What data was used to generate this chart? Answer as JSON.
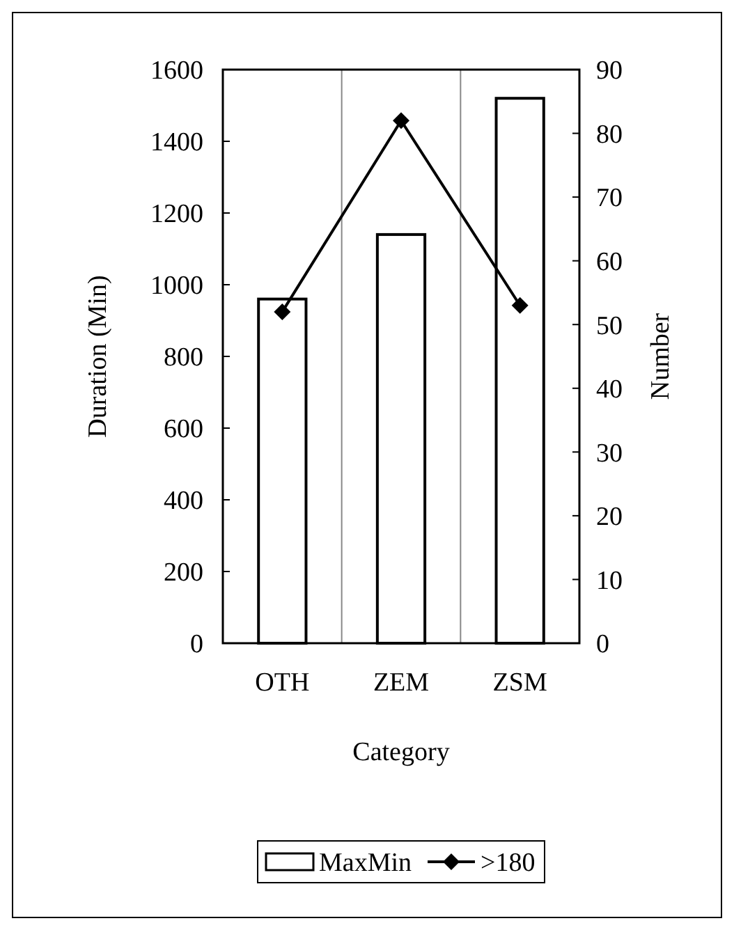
{
  "chart_data": {
    "type": "bar",
    "xlabel": "Category",
    "ylabel": "Duration (Min)",
    "y2label": "Number",
    "categories": [
      "OTH",
      "ZEM",
      "ZSM"
    ],
    "series": [
      {
        "name": "MaxMin",
        "color": "#ffffff",
        "values": [
          960,
          1140,
          1520
        ]
      },
      {
        "name": ">180",
        "type": "line",
        "axis": "y2",
        "color": "#000000",
        "marker": "diamond",
        "values": [
          52,
          82,
          53
        ]
      }
    ],
    "ylim": [
      0,
      1600
    ],
    "yticks": [
      0,
      200,
      400,
      600,
      800,
      1000,
      1200,
      1400,
      1600
    ],
    "y2lim": [
      0,
      90
    ],
    "y2ticks": [
      0,
      10,
      20,
      30,
      40,
      50,
      60,
      70,
      80,
      90
    ],
    "grid": "x",
    "legend": "bottom"
  }
}
